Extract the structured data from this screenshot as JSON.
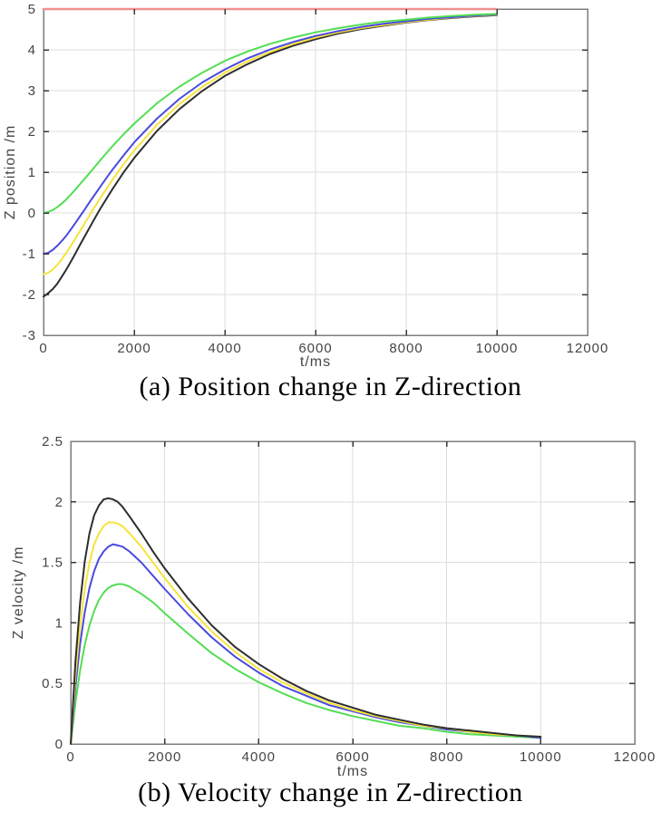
{
  "page": {
    "background": "#ffffff"
  },
  "figure": {
    "panel_count": 2,
    "grid": "on",
    "legend": "none"
  },
  "colors": {
    "reference_line": "#f08f8f",
    "curve_black": "#2e2e2e",
    "curve_yellow": "#f7e33a",
    "curve_blue": "#4a4ae0",
    "curve_green": "#53dd53",
    "gridline": "#dedede",
    "axis_box": "#7d7d7d",
    "tick_text": "#454545",
    "caption_text": "#000000"
  },
  "chart_data": [
    {
      "id": "position-z",
      "type": "line",
      "caption": "(a) Position change in Z-direction",
      "xlabel": "t/ms",
      "ylabel": "Z position /m",
      "xlim": [
        0,
        12000
      ],
      "ylim": [
        -3,
        5
      ],
      "xticks": [
        0,
        2000,
        4000,
        6000,
        8000,
        10000,
        12000
      ],
      "xtick_labels": [
        "0",
        "2000",
        "4000",
        "6000",
        "8000",
        "10000",
        "12000"
      ],
      "yticks": [
        -3,
        -2,
        -1,
        0,
        1,
        2,
        3,
        4,
        5
      ],
      "ytick_labels": [
        "-3",
        "-2",
        "-1",
        "0",
        "1",
        "2",
        "3",
        "4",
        "5"
      ],
      "grid": true,
      "legend": "none",
      "x": [
        0,
        100,
        200,
        300,
        400,
        500,
        600,
        700,
        800,
        900,
        1000,
        1100,
        1250,
        1500,
        1750,
        2000,
        2500,
        3000,
        3500,
        4000,
        4500,
        5000,
        5500,
        6000,
        6500,
        7000,
        7500,
        8000,
        8500,
        9000,
        9500,
        10000
      ],
      "series": [
        {
          "name": "target-reference-5m",
          "color": "#f08f8f",
          "stroke_width": 2.6,
          "x": [
            0,
            10000
          ],
          "values": [
            5,
            5
          ]
        },
        {
          "name": "black",
          "color": "#2e2e2e",
          "stroke_width": 2,
          "values": [
            -2.05,
            -1.97,
            -1.87,
            -1.74,
            -1.57,
            -1.39,
            -1.2,
            -1.0,
            -0.79,
            -0.59,
            -0.39,
            -0.19,
            0.1,
            0.55,
            0.97,
            1.35,
            2.01,
            2.55,
            2.99,
            3.36,
            3.65,
            3.9,
            4.1,
            4.26,
            4.4,
            4.51,
            4.59,
            4.67,
            4.73,
            4.78,
            4.82,
            4.85
          ]
        },
        {
          "name": "yellow",
          "color": "#f7e33a",
          "stroke_width": 2,
          "values": [
            -1.5,
            -1.47,
            -1.39,
            -1.28,
            -1.14,
            -0.98,
            -0.81,
            -0.63,
            -0.45,
            -0.27,
            -0.09,
            0.1,
            0.36,
            0.78,
            1.17,
            1.53,
            2.16,
            2.67,
            3.09,
            3.44,
            3.72,
            3.95,
            4.14,
            4.3,
            4.43,
            4.53,
            4.61,
            4.68,
            4.74,
            4.79,
            4.83,
            4.86
          ]
        },
        {
          "name": "blue",
          "color": "#4a4ae0",
          "stroke_width": 2,
          "values": [
            -1.0,
            -0.98,
            -0.91,
            -0.81,
            -0.69,
            -0.56,
            -0.41,
            -0.25,
            -0.09,
            0.07,
            0.24,
            0.4,
            0.64,
            1.03,
            1.39,
            1.73,
            2.31,
            2.8,
            3.2,
            3.52,
            3.79,
            4.01,
            4.19,
            4.34,
            4.46,
            4.56,
            4.64,
            4.7,
            4.76,
            4.8,
            4.84,
            4.87
          ]
        },
        {
          "name": "green",
          "color": "#53dd53",
          "stroke_width": 2,
          "values": [
            0.0,
            0.02,
            0.07,
            0.14,
            0.23,
            0.33,
            0.45,
            0.57,
            0.7,
            0.83,
            0.96,
            1.09,
            1.29,
            1.61,
            1.91,
            2.19,
            2.69,
            3.1,
            3.44,
            3.73,
            3.96,
            4.15,
            4.3,
            4.43,
            4.53,
            4.62,
            4.69,
            4.74,
            4.79,
            4.83,
            4.86,
            4.88
          ]
        }
      ]
    },
    {
      "id": "velocity-z",
      "type": "line",
      "caption": "(b) Velocity change in Z-direction",
      "xlabel": "t/ms",
      "ylabel": "Z velocity /m",
      "xlim": [
        0,
        12000
      ],
      "ylim": [
        0,
        2.5
      ],
      "xticks": [
        0,
        2000,
        4000,
        6000,
        8000,
        10000,
        12000
      ],
      "xtick_labels": [
        "0",
        "2000",
        "4000",
        "6000",
        "8000",
        "10000",
        "12000"
      ],
      "yticks": [
        0,
        0.5,
        1,
        1.5,
        2,
        2.5
      ],
      "ytick_labels": [
        "0",
        "0.5",
        "1",
        "1.5",
        "2",
        "2.5"
      ],
      "grid": true,
      "legend": "none",
      "x": [
        0,
        100,
        200,
        300,
        400,
        500,
        600,
        700,
        800,
        900,
        1000,
        1100,
        1250,
        1500,
        1750,
        2000,
        2500,
        3000,
        3500,
        4000,
        4500,
        5000,
        5500,
        6000,
        6500,
        7000,
        7500,
        8000,
        8500,
        9000,
        9500,
        10000
      ],
      "series": [
        {
          "name": "green",
          "color": "#53dd53",
          "stroke_width": 2,
          "values": [
            0,
            0.34,
            0.61,
            0.82,
            0.98,
            1.1,
            1.19,
            1.25,
            1.29,
            1.31,
            1.32,
            1.32,
            1.3,
            1.24,
            1.17,
            1.08,
            0.91,
            0.75,
            0.62,
            0.51,
            0.42,
            0.34,
            0.28,
            0.23,
            0.19,
            0.15,
            0.13,
            0.1,
            0.08,
            0.07,
            0.06,
            0.05
          ]
        },
        {
          "name": "blue",
          "color": "#4a4ae0",
          "stroke_width": 2,
          "values": [
            0,
            0.47,
            0.83,
            1.09,
            1.29,
            1.43,
            1.53,
            1.59,
            1.63,
            1.65,
            1.64,
            1.63,
            1.59,
            1.5,
            1.39,
            1.28,
            1.07,
            0.88,
            0.72,
            0.59,
            0.48,
            0.4,
            0.32,
            0.27,
            0.22,
            0.18,
            0.15,
            0.12,
            0.1,
            0.08,
            0.07,
            0.05
          ]
        },
        {
          "name": "yellow",
          "color": "#f7e33a",
          "stroke_width": 2,
          "values": [
            0,
            0.56,
            0.98,
            1.28,
            1.5,
            1.65,
            1.74,
            1.8,
            1.83,
            1.83,
            1.82,
            1.8,
            1.74,
            1.63,
            1.5,
            1.37,
            1.13,
            0.93,
            0.76,
            0.62,
            0.51,
            0.42,
            0.34,
            0.28,
            0.23,
            0.19,
            0.15,
            0.13,
            0.1,
            0.08,
            0.07,
            0.06
          ]
        },
        {
          "name": "black",
          "color": "#2e2e2e",
          "stroke_width": 2,
          "values": [
            0,
            0.68,
            1.17,
            1.51,
            1.74,
            1.89,
            1.97,
            2.02,
            2.03,
            2.02,
            2.0,
            1.96,
            1.88,
            1.74,
            1.59,
            1.45,
            1.2,
            0.98,
            0.8,
            0.66,
            0.54,
            0.44,
            0.36,
            0.3,
            0.24,
            0.2,
            0.16,
            0.13,
            0.11,
            0.09,
            0.07,
            0.06
          ]
        }
      ]
    }
  ]
}
